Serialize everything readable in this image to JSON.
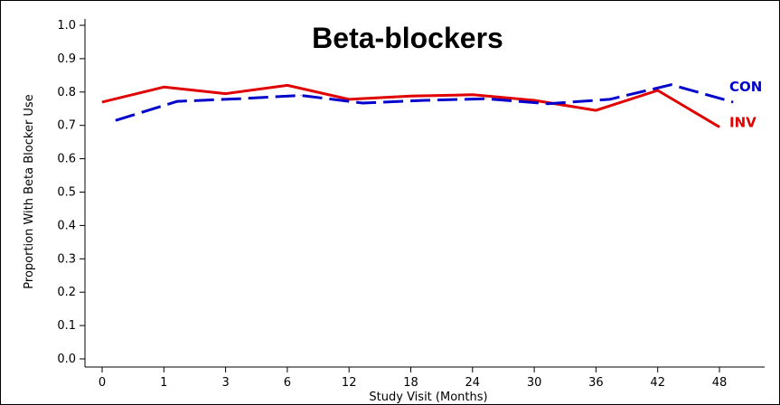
{
  "chart_data": {
    "type": "line",
    "title": "Beta-blockers",
    "xlabel": "Study Visit (Months)",
    "ylabel": "Proportion With Beta Blocker Use",
    "categories": [
      "0",
      "1",
      "3",
      "6",
      "12",
      "18",
      "24",
      "30",
      "36",
      "42",
      "48"
    ],
    "yticks": [
      "0.0",
      "0.1",
      "0.2",
      "0.3",
      "0.4",
      "0.5",
      "0.6",
      "0.7",
      "0.8",
      "0.9",
      "1.0"
    ],
    "ylim": [
      0,
      1.0
    ],
    "grid": false,
    "series": [
      {
        "name": "INV",
        "color": "#e00000",
        "style": "solid",
        "values": [
          0.77,
          0.815,
          0.795,
          0.82,
          0.778,
          0.788,
          0.792,
          0.775,
          0.745,
          0.805,
          0.695
        ]
      },
      {
        "name": "CON",
        "color": "#0000cc",
        "style": "dashed",
        "values": [
          0.715,
          0.772,
          0.78,
          0.79,
          0.767,
          0.775,
          0.78,
          0.765,
          0.778,
          0.822,
          0.77
        ]
      }
    ]
  }
}
